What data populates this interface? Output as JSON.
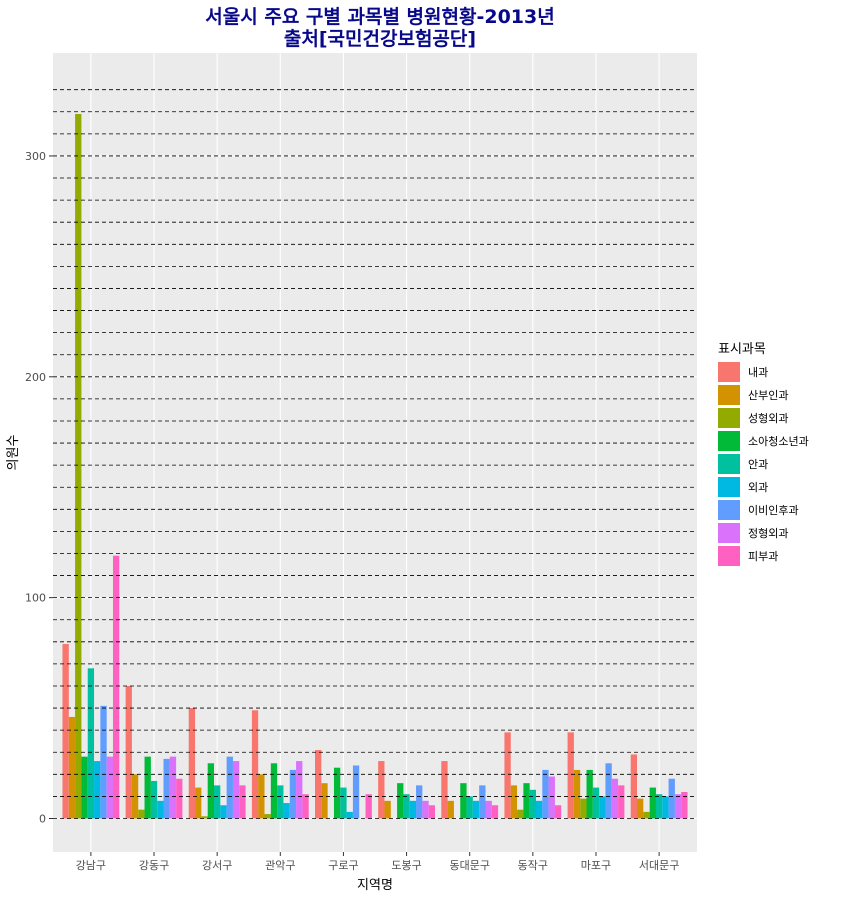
{
  "chart_data": {
    "type": "bar",
    "title": "서울시 주요 구별 과목별 병원현황-2013년",
    "subtitle": "출처[국민건강보험공단]",
    "xlabel": "지역명",
    "ylabel": "의원수",
    "ylim": [
      -15,
      330
    ],
    "yticks": [
      0,
      100,
      200,
      300
    ],
    "dashed_hlines": [
      0,
      10,
      20,
      30,
      40,
      50,
      60,
      70,
      80,
      90,
      100,
      110,
      120,
      130,
      140,
      150,
      160,
      170,
      180,
      190,
      200,
      210,
      220,
      230,
      240,
      250,
      260,
      270,
      280,
      290,
      300,
      310,
      320,
      330
    ],
    "legend_title": "표시과목",
    "legend_position": "right",
    "categories": [
      "강남구",
      "강동구",
      "강서구",
      "관악구",
      "구로구",
      "도봉구",
      "동대문구",
      "동작구",
      "마포구",
      "서대문구"
    ],
    "series": [
      {
        "name": "내과",
        "color": "#F8766D",
        "values": [
          79,
          60,
          50,
          49,
          31,
          26,
          26,
          39,
          39,
          29
        ]
      },
      {
        "name": "산부인과",
        "color": "#D39200",
        "values": [
          46,
          20,
          14,
          20,
          16,
          8,
          8,
          15,
          22,
          9
        ]
      },
      {
        "name": "성형외과",
        "color": "#93AA00",
        "values": [
          319,
          4,
          1,
          2,
          0,
          0,
          0,
          4,
          9,
          3
        ]
      },
      {
        "name": "소아청소년과",
        "color": "#00BA38",
        "values": [
          28,
          28,
          25,
          25,
          23,
          16,
          16,
          16,
          22,
          14
        ]
      },
      {
        "name": "안과",
        "color": "#00C19F",
        "values": [
          68,
          17,
          15,
          15,
          14,
          11,
          10,
          13,
          14,
          11
        ]
      },
      {
        "name": "외과",
        "color": "#00B9E3",
        "values": [
          26,
          8,
          6,
          7,
          3,
          8,
          8,
          8,
          10,
          10
        ]
      },
      {
        "name": "이비인후과",
        "color": "#619CFF",
        "values": [
          51,
          27,
          28,
          22,
          24,
          15,
          15,
          22,
          25,
          18
        ]
      },
      {
        "name": "정형외과",
        "color": "#DB72FB",
        "values": [
          28,
          28,
          26,
          26,
          0,
          8,
          8,
          19,
          18,
          11
        ]
      },
      {
        "name": "피부과",
        "color": "#FF61C3",
        "values": [
          119,
          18,
          15,
          11,
          11,
          6,
          6,
          6,
          15,
          12
        ]
      }
    ],
    "grid": true,
    "panel_background": "#EBEBEB"
  }
}
